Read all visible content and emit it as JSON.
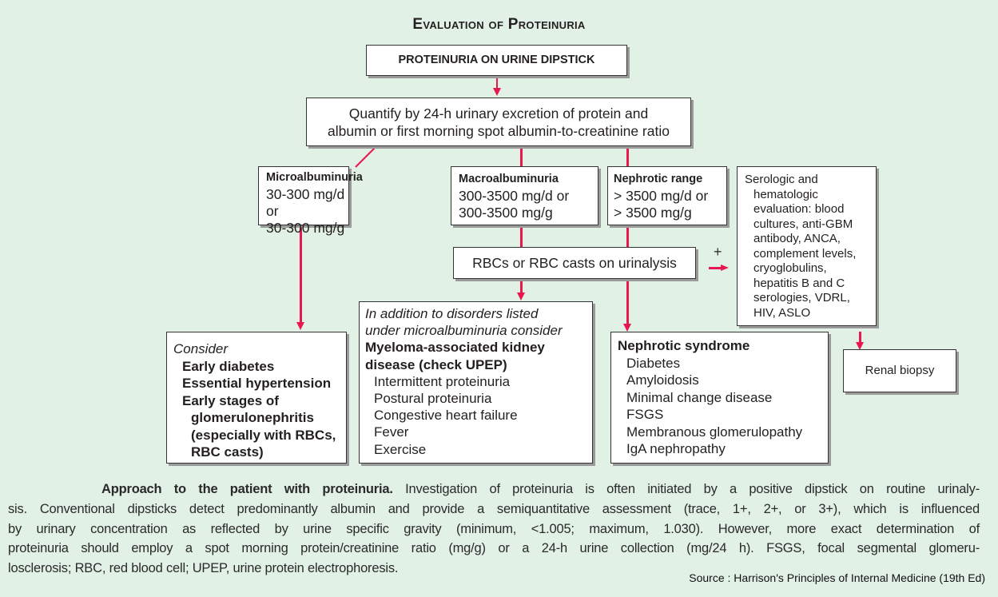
{
  "title": "Evaluation of Proteinuria",
  "boxes": {
    "dipstick": "PROTEINURIA ON URINE DIPSTICK",
    "quantify": [
      "Quantify by 24-h urinary excretion of protein and",
      "albumin or first morning spot albumin-to-creatinine ratio"
    ],
    "micro": {
      "heading": "Microalbuminuria",
      "lines": [
        "30-300 mg/d or",
        "30-300 mg/g"
      ]
    },
    "macro": {
      "heading": "Macroalbuminuria",
      "lines": [
        "300-3500 mg/d or",
        "300-3500 mg/g"
      ]
    },
    "nephrotic_range": {
      "heading": "Nephrotic range",
      "lines": [
        "> 3500 mg/d or",
        "> 3500 mg/g"
      ]
    },
    "serologic": [
      "Serologic and",
      "hematologic",
      "evaluation: blood",
      "cultures, anti-GBM",
      "antibody, ANCA,",
      "complement levels,",
      "cryoglobulins,",
      "hepatitis B and C",
      "serologies, VDRL,",
      "HIV, ASLO"
    ],
    "rbc": "RBCs or RBC casts on urinalysis",
    "plus": "+",
    "consider": {
      "heading": "Consider",
      "items": [
        "Early diabetes",
        "Essential hypertension",
        "Early stages of",
        "glomerulonephritis",
        "(especially with RBCs,",
        "RBC casts)"
      ]
    },
    "addition": {
      "intro": [
        "In addition to disorders listed",
        "under microalbuminuria consider"
      ],
      "heading": [
        "Myeloma-associated kidney",
        "disease (check UPEP)"
      ],
      "items": [
        "Intermittent proteinuria",
        "Postural proteinuria",
        "Congestive heart failure",
        "Fever",
        "Exercise"
      ]
    },
    "nephrotic_syndrome": {
      "heading": "Nephrotic syndrome",
      "items": [
        "Diabetes",
        "Amyloidosis",
        "Minimal change disease",
        "FSGS",
        "Membranous glomerulopathy",
        "IgA nephropathy"
      ]
    },
    "biopsy": "Renal biopsy"
  },
  "caption": {
    "bold": "Approach to the patient with proteinuria.",
    "lines": [
      "Investigation of proteinuria is often initiated by a positive dipstick on routine urinaly-",
      "sis. Conventional dipsticks detect predominantly albumin and provide a semiquantitative assessment (trace, 1+, 2+, or 3+), which is influenced",
      "by urinary concentration as reflected by urine specific gravity (minimum, <1.005; maximum, 1.030). However, more exact determination of",
      "proteinuria should employ a spot morning protein/creatinine ratio (mg/g) or a 24-h urine collection (mg/24 h). FSGS, focal segmental glomeru-",
      "losclerosis; RBC, red blood cell; UPEP, urine protein electrophoresis."
    ]
  },
  "source": "Source : Harrison's Principles of Internal Medicine (19th Ed)",
  "colors": {
    "background": "#e2f1e6",
    "arrow": "#e8174f",
    "border": "#333333"
  }
}
